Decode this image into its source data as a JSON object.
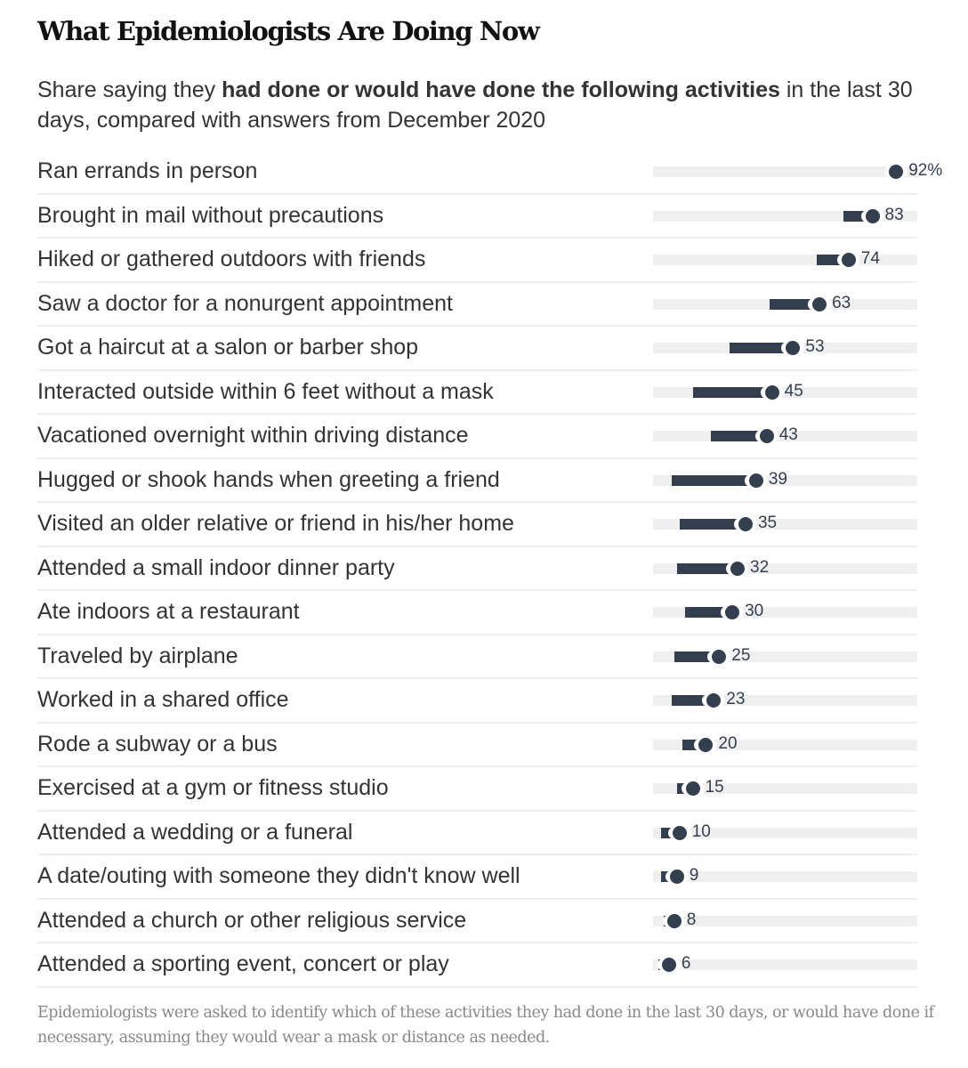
{
  "title": "What Epidemiologists Are Doing Now",
  "subtitle": {
    "pre": "Share saying they ",
    "bold": "had done or would have done the following activities",
    "post": " in the last 30 days, compared with answers from December 2020"
  },
  "note": "Epidemiologists were asked to identify which of these activities they had done in the last 30 days, or would have done if necessary, assuming they would wear a mask or distance as needed.",
  "colors": {
    "mark": "#333f4f",
    "track": "#efefef",
    "divider": "#eeeeee"
  },
  "chart_data": {
    "type": "dumbbell",
    "title": "What Epidemiologists Are Doing Now",
    "xlabel": "",
    "ylabel": "",
    "xlim": [
      0,
      100
    ],
    "unit": "%",
    "grid": false,
    "legend": "none",
    "series": [
      {
        "name": "December 2020 (estimated bar start)",
        "key": "dec2020"
      },
      {
        "name": "Now (last 30 days)",
        "key": "now"
      }
    ],
    "categories": [
      "Ran errands in person",
      "Brought in mail without precautions",
      "Hiked or gathered outdoors with friends",
      "Saw a doctor for a nonurgent appointment",
      "Got a haircut at a salon or barber shop",
      "Interacted outside within 6 feet without a mask",
      "Vacationed overnight within driving distance",
      "Hugged or shook hands when greeting a friend",
      "Visited an older relative or friend in his/her home",
      "Attended a small indoor dinner party",
      "Ate indoors at a restaurant",
      "Traveled by airplane",
      "Worked in a shared office",
      "Rode a subway or a bus",
      "Exercised at a gym or fitness studio",
      "Attended a wedding or a funeral",
      "A date/outing with someone they didn't know well",
      "Attended a church or other religious service",
      "Attended a sporting event, concert or play"
    ],
    "rows": [
      {
        "label": "Ran errands in person",
        "dec2020": 92,
        "now": 92,
        "value_label": "92%"
      },
      {
        "label": "Brought in mail without precautions",
        "dec2020": 72,
        "now": 83,
        "value_label": "83"
      },
      {
        "label": "Hiked or gathered outdoors with friends",
        "dec2020": 62,
        "now": 74,
        "value_label": "74"
      },
      {
        "label": "Saw a doctor for a nonurgent appointment",
        "dec2020": 44,
        "now": 63,
        "value_label": "63"
      },
      {
        "label": "Got a haircut at a salon or barber shop",
        "dec2020": 29,
        "now": 53,
        "value_label": "53"
      },
      {
        "label": "Interacted outside within 6 feet without a mask",
        "dec2020": 15,
        "now": 45,
        "value_label": "45"
      },
      {
        "label": "Vacationed overnight within driving distance",
        "dec2020": 22,
        "now": 43,
        "value_label": "43"
      },
      {
        "label": "Hugged or shook hands when greeting a friend",
        "dec2020": 7,
        "now": 39,
        "value_label": "39"
      },
      {
        "label": "Visited an older relative or friend in his/her home",
        "dec2020": 10,
        "now": 35,
        "value_label": "35"
      },
      {
        "label": "Attended a small indoor dinner party",
        "dec2020": 9,
        "now": 32,
        "value_label": "32"
      },
      {
        "label": "Ate indoors at a restaurant",
        "dec2020": 12,
        "now": 30,
        "value_label": "30"
      },
      {
        "label": "Traveled by airplane",
        "dec2020": 8,
        "now": 25,
        "value_label": "25"
      },
      {
        "label": "Worked in a shared office",
        "dec2020": 7,
        "now": 23,
        "value_label": "23"
      },
      {
        "label": "Rode a subway or a bus",
        "dec2020": 11,
        "now": 20,
        "value_label": "20"
      },
      {
        "label": "Exercised at a gym or fitness studio",
        "dec2020": 9,
        "now": 15,
        "value_label": "15"
      },
      {
        "label": "Attended a wedding or a funeral",
        "dec2020": 3,
        "now": 10,
        "value_label": "10"
      },
      {
        "label": "A date/outing with someone they didn't know well",
        "dec2020": 3,
        "now": 9,
        "value_label": "9"
      },
      {
        "label": "Attended a church or other religious service",
        "dec2020": 4,
        "now": 8,
        "value_label": "8"
      },
      {
        "label": "Attended a sporting event, concert or play",
        "dec2020": 2,
        "now": 6,
        "value_label": "6"
      }
    ]
  }
}
